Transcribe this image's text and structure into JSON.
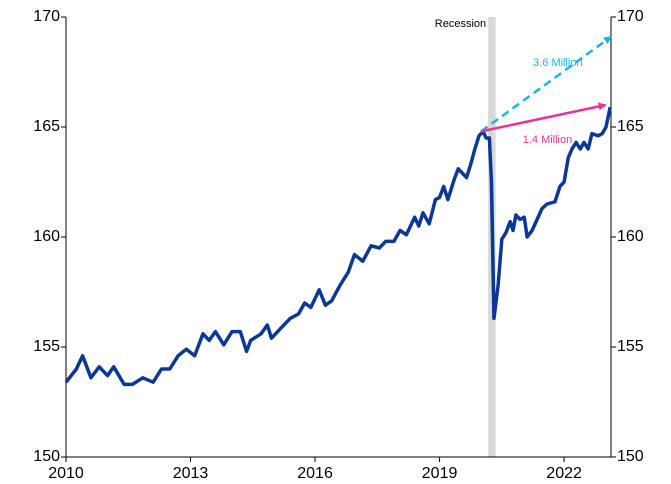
{
  "chart_data": {
    "type": "line",
    "x": [
      2010.0,
      2010.25,
      2010.4,
      2010.6,
      2010.8,
      2011.0,
      2011.15,
      2011.4,
      2011.6,
      2011.85,
      2012.1,
      2012.3,
      2012.5,
      2012.7,
      2012.9,
      2013.1,
      2013.3,
      2013.45,
      2013.6,
      2013.8,
      2014.0,
      2014.2,
      2014.35,
      2014.45,
      2014.7,
      2014.85,
      2014.95,
      2015.2,
      2015.4,
      2015.6,
      2015.75,
      2015.9,
      2016.1,
      2016.25,
      2016.4,
      2016.6,
      2016.8,
      2016.95,
      2017.15,
      2017.35,
      2017.55,
      2017.7,
      2017.9,
      2018.05,
      2018.2,
      2018.4,
      2018.5,
      2018.6,
      2018.75,
      2018.9,
      2019.0,
      2019.1,
      2019.2,
      2019.35,
      2019.45,
      2019.55,
      2019.65,
      2019.75,
      2019.85,
      2019.95,
      2020.05,
      2020.12,
      2020.2,
      2020.25,
      2020.31,
      2020.41,
      2020.5,
      2020.6,
      2020.7,
      2020.77,
      2020.84,
      2020.94,
      2021.04,
      2021.11,
      2021.23,
      2021.35,
      2021.47,
      2021.59,
      2021.78,
      2021.9,
      2022.0,
      2022.1,
      2022.19,
      2022.29,
      2022.39,
      2022.48,
      2022.58,
      2022.67,
      2022.82,
      2022.92,
      2023.01,
      2023.11
    ],
    "series": [
      {
        "color": "#0b3894",
        "values": [
          153.4,
          154.0,
          154.6,
          153.6,
          154.1,
          153.7,
          154.1,
          153.3,
          153.3,
          153.6,
          153.4,
          154.0,
          154.0,
          154.6,
          154.9,
          154.6,
          155.6,
          155.3,
          155.7,
          155.1,
          155.7,
          155.7,
          154.8,
          155.3,
          155.6,
          156.0,
          155.4,
          155.9,
          156.3,
          156.5,
          157.0,
          156.8,
          157.6,
          156.9,
          157.1,
          157.8,
          158.4,
          159.2,
          158.9,
          159.6,
          159.5,
          159.8,
          159.8,
          160.3,
          160.1,
          160.9,
          160.5,
          161.1,
          160.6,
          161.7,
          161.8,
          162.3,
          161.7,
          162.6,
          163.1,
          162.9,
          162.7,
          163.3,
          164.0,
          164.6,
          164.8,
          164.5,
          164.5,
          162.5,
          156.3,
          157.8,
          159.9,
          160.2,
          160.7,
          160.3,
          161.0,
          160.8,
          160.9,
          160.0,
          160.3,
          160.8,
          161.3,
          161.5,
          161.6,
          162.3,
          162.5,
          163.6,
          164.0,
          164.3,
          164.0,
          164.3,
          164.0,
          164.7,
          164.6,
          164.7,
          165.0,
          165.9
        ]
      }
    ],
    "xlim": [
      2010,
      2023.13
    ],
    "xticks": [
      2010,
      2013,
      2016,
      2019,
      2022
    ],
    "ylim": [
      150,
      170
    ],
    "yticks": [
      150,
      155,
      160,
      165,
      170
    ],
    "y2lim": [
      150,
      170
    ],
    "y2ticks": [
      150,
      155,
      160,
      165,
      170
    ],
    "recession": {
      "label": "Recession",
      "x": [
        2020.17,
        2020.35
      ]
    },
    "annotations": [
      {
        "label": "3.6 Million",
        "color": "#1fb1ea",
        "dashed": true,
        "x": [
          2020.0,
          2023.13
        ],
        "y": [
          164.8,
          169.1
        ]
      },
      {
        "label": "1.4 Million",
        "color": "#e8339a",
        "dashed": false,
        "x": [
          2020.0,
          2023.0
        ],
        "y": [
          164.8,
          166.0
        ]
      }
    ]
  }
}
